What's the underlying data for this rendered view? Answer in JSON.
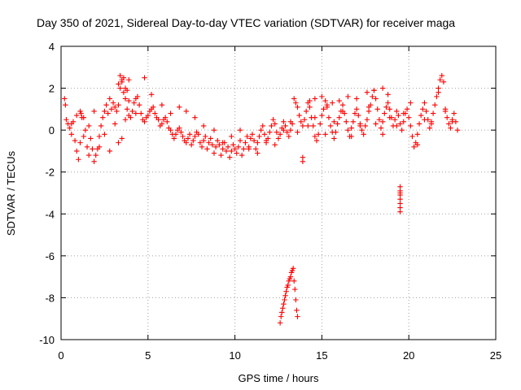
{
  "chart_data": {
    "type": "scatter",
    "title": "Day 350 of 2021, Sidereal Day-to-day VTEC variation (SDTVAR) for receiver maga",
    "xlabel": "GPS time / hours",
    "ylabel": "SDTVAR / TECUs",
    "xlim": [
      0,
      25
    ],
    "ylim": [
      -10,
      4
    ],
    "xticks": [
      0,
      5,
      10,
      15,
      20,
      25
    ],
    "yticks": [
      -10,
      -8,
      -6,
      -4,
      -2,
      0,
      2,
      4
    ],
    "xtick_labels": [
      "0",
      "5",
      "10",
      "15",
      "20",
      "25"
    ],
    "ytick_labels": [
      "-10",
      "-8",
      "-6",
      "-4",
      "-2",
      "0",
      "2",
      "4"
    ],
    "grid": true,
    "marker": "+",
    "color": "#ff0000",
    "series": [
      {
        "name": "SDTVAR",
        "x": [
          0.2,
          0.25,
          0.3,
          0.4,
          0.5,
          0.6,
          0.7,
          0.8,
          0.9,
          1.0,
          1.1,
          1.15,
          1.2,
          1.3,
          1.4,
          1.5,
          1.6,
          1.7,
          1.8,
          1.9,
          2.0,
          2.1,
          2.2,
          2.3,
          2.4,
          2.5,
          2.6,
          2.7,
          2.8,
          2.9,
          3.0,
          3.1,
          3.2,
          3.3,
          3.4,
          3.5,
          3.6,
          3.7,
          3.8,
          3.9,
          4.0,
          4.1,
          4.2,
          4.3,
          4.4,
          4.5,
          4.6,
          4.7,
          4.8,
          4.9,
          5.0,
          5.1,
          5.2,
          5.3,
          5.4,
          5.5,
          5.6,
          5.7,
          5.8,
          5.9,
          6.0,
          6.1,
          6.2,
          6.3,
          6.4,
          6.5,
          6.6,
          6.7,
          6.8,
          6.9,
          7.0,
          7.1,
          7.2,
          7.3,
          7.4,
          7.5,
          7.6,
          7.7,
          7.8,
          7.9,
          8.0,
          8.1,
          8.2,
          8.3,
          8.4,
          8.5,
          8.6,
          8.7,
          8.8,
          8.9,
          9.0,
          9.1,
          9.2,
          9.3,
          9.4,
          9.5,
          9.6,
          9.7,
          9.8,
          9.9,
          10.0,
          10.1,
          10.2,
          10.3,
          10.4,
          10.5,
          10.6,
          10.7,
          10.8,
          10.9,
          11.0,
          11.1,
          11.2,
          11.3,
          11.4,
          11.5,
          11.6,
          11.7,
          11.8,
          11.9,
          12.0,
          12.1,
          12.2,
          12.3,
          12.4,
          12.5,
          12.6,
          12.7,
          12.8,
          12.9,
          13.0,
          13.1,
          13.2,
          13.3,
          13.4,
          13.5,
          13.6,
          13.7,
          13.8,
          13.9,
          14.0,
          14.1,
          14.2,
          14.3,
          14.4,
          14.5,
          14.6,
          14.7,
          14.8,
          14.9,
          15.0,
          15.1,
          15.2,
          15.3,
          15.4,
          15.5,
          15.6,
          15.7,
          15.8,
          15.9,
          16.0,
          16.1,
          16.2,
          16.3,
          16.4,
          16.5,
          16.6,
          16.7,
          16.8,
          16.9,
          17.0,
          17.1,
          17.2,
          17.3,
          17.4,
          17.5,
          17.6,
          17.7,
          17.8,
          17.9,
          18.0,
          18.1,
          18.2,
          18.3,
          18.4,
          18.5,
          18.6,
          18.7,
          18.8,
          18.9,
          19.0,
          19.1,
          19.2,
          19.3,
          19.4,
          19.5,
          19.6,
          19.7,
          19.8,
          19.9,
          20.0,
          20.1,
          20.2,
          20.3,
          20.4,
          20.5,
          20.6,
          20.7,
          20.8,
          20.9,
          21.0,
          21.1,
          21.2,
          21.3,
          21.4,
          21.5,
          21.6,
          21.7,
          21.8,
          21.9,
          22.0,
          22.1,
          22.2,
          22.3,
          22.4,
          22.5,
          22.6,
          22.7,
          22.8,
          0.6,
          0.9,
          1.1,
          1.3,
          1.6,
          1.9,
          2.2,
          2.5,
          2.8,
          3.1,
          3.3,
          3.5,
          3.7,
          3.9,
          4.3,
          4.8,
          5.2,
          5.8,
          6.3,
          6.8,
          7.2,
          7.7,
          8.2,
          8.8,
          9.3,
          9.8,
          10.3,
          10.8,
          11.3,
          11.8,
          12.3,
          12.8,
          13.2,
          13.6,
          14.2,
          14.6,
          15.2,
          15.7,
          16.2,
          16.7,
          17.2,
          17.7,
          18.1,
          18.5,
          18.9,
          19.3,
          19.7,
          20.1,
          20.5,
          20.9,
          21.3,
          21.7,
          22.1,
          22.5,
          3.3,
          3.4,
          3.5,
          3.6,
          3.7,
          3.8,
          3.9,
          12.6,
          12.65,
          12.7,
          12.75,
          12.8,
          12.85,
          12.9,
          12.95,
          13.0,
          13.05,
          13.1,
          13.15,
          13.2,
          13.25,
          13.3,
          13.35,
          13.4,
          13.45,
          13.5,
          13.55,
          13.6,
          19.5,
          19.5,
          19.5,
          19.5,
          19.5,
          19.5,
          19.5,
          19.5,
          13.9,
          13.9,
          14.3,
          14.6,
          15.0,
          15.3,
          15.6,
          16.0,
          16.5,
          17.0,
          17.6,
          18.0,
          18.5,
          18.8
        ],
        "y": [
          1.5,
          1.2,
          0.5,
          0.3,
          0.1,
          -0.2,
          0.4,
          -0.5,
          -1.0,
          -1.4,
          -0.6,
          0.8,
          0.6,
          -0.3,
          0.0,
          -0.8,
          -1.2,
          -0.4,
          -0.9,
          -1.5,
          -1.2,
          -0.9,
          -0.3,
          0.2,
          0.6,
          0.9,
          1.2,
          0.8,
          1.5,
          1.0,
          1.3,
          1.1,
          0.9,
          1.2,
          2.0,
          2.4,
          1.8,
          1.5,
          1.0,
          0.7,
          0.6,
          0.9,
          1.3,
          1.5,
          1.6,
          1.2,
          0.8,
          0.5,
          0.4,
          0.6,
          0.7,
          0.9,
          1.0,
          1.1,
          0.8,
          0.6,
          0.5,
          0.2,
          0.3,
          0.5,
          0.6,
          0.4,
          0.1,
          0.0,
          -0.2,
          -0.4,
          -0.2,
          0.0,
          0.1,
          -0.1,
          -0.3,
          -0.5,
          -0.6,
          -0.4,
          -0.2,
          -0.7,
          -0.5,
          -0.3,
          -0.1,
          -0.2,
          -0.6,
          -0.8,
          -0.5,
          -0.3,
          -0.9,
          -0.6,
          -0.4,
          -0.7,
          -1.1,
          -0.8,
          -0.5,
          -0.7,
          -1.2,
          -0.9,
          -0.6,
          -1.0,
          -0.8,
          -1.3,
          -1.0,
          -0.7,
          -0.9,
          -1.1,
          -0.8,
          -0.5,
          -1.2,
          -0.9,
          -0.6,
          -0.3,
          -0.8,
          -0.4,
          -0.2,
          -0.5,
          -0.9,
          -0.6,
          -0.3,
          0.0,
          0.2,
          -0.2,
          -0.6,
          -0.4,
          -0.1,
          0.2,
          0.5,
          0.3,
          -0.1,
          -0.4,
          -0.2,
          0.1,
          0.4,
          0.2,
          -0.1,
          -0.3,
          0.0,
          0.3,
          1.5,
          1.3,
          1.1,
          0.7,
          0.4,
          0.2,
          0.5,
          0.9,
          1.3,
          1.1,
          0.6,
          0.2,
          -0.3,
          -0.5,
          -0.2,
          0.3,
          0.7,
          1.0,
          1.4,
          1.1,
          0.6,
          0.2,
          -0.1,
          -0.4,
          -0.1,
          0.3,
          0.6,
          0.9,
          1.2,
          0.8,
          0.4,
          0.0,
          -0.3,
          0.1,
          0.4,
          0.8,
          1.0,
          0.7,
          0.3,
          0.0,
          -0.2,
          0.2,
          0.5,
          0.9,
          1.2,
          1.6,
          1.9,
          1.5,
          1.0,
          0.5,
          0.1,
          0.4,
          0.8,
          1.1,
          1.3,
          1.0,
          0.6,
          0.2,
          0.5,
          0.9,
          0.7,
          0.3,
          0.0,
          0.4,
          0.8,
          1.0,
          0.6,
          0.2,
          -0.3,
          -0.8,
          -0.6,
          -0.2,
          0.3,
          0.7,
          1.0,
          1.3,
          0.9,
          0.5,
          0.1,
          0.4,
          0.8,
          1.2,
          1.6,
          2.0,
          2.4,
          2.6,
          2.3,
          1.0,
          0.6,
          0.3,
          0.1,
          0.5,
          0.8,
          0.4,
          0.0,
          0.3,
          0.7,
          0.9,
          0.6,
          0.2,
          0.9,
          -0.8,
          -0.2,
          -1.0,
          0.3,
          -0.6,
          -0.4,
          0.5,
          1.4,
          0.8,
          2.5,
          1.7,
          1.2,
          0.8,
          1.1,
          0.9,
          0.6,
          0.2,
          0.0,
          -0.6,
          -0.3,
          0.0,
          -0.9,
          -1.1,
          -0.5,
          -0.7,
          0.0,
          0.4,
          -0.1,
          0.2,
          0.6,
          -0.2,
          0.4,
          0.9,
          -0.3,
          0.2,
          1.1,
          0.3,
          -0.2,
          0.6,
          0.2,
          0.8,
          1.3,
          -0.7,
          0.5,
          0.3,
          1.8,
          0.9,
          0.4,
          2.2,
          2.6,
          2.3,
          2.5,
          2.0,
          1.9,
          2.4,
          -9.2,
          -8.9,
          -8.7,
          -8.5,
          -8.3,
          -8.1,
          -7.9,
          -7.7,
          -7.5,
          -7.4,
          -7.2,
          -7.1,
          -7.0,
          -6.8,
          -6.7,
          -6.6,
          -7.2,
          -7.6,
          -8.1,
          -8.6,
          -8.9,
          -2.7,
          -2.9,
          -3.1,
          -3.3,
          -3.5,
          -3.7,
          -3.9,
          -3.0,
          -1.3,
          -1.5,
          1.4,
          1.5,
          1.6,
          1.2,
          1.3,
          1.4,
          1.6,
          1.5,
          1.8,
          1.9,
          2.0,
          1.7
        ]
      }
    ]
  }
}
